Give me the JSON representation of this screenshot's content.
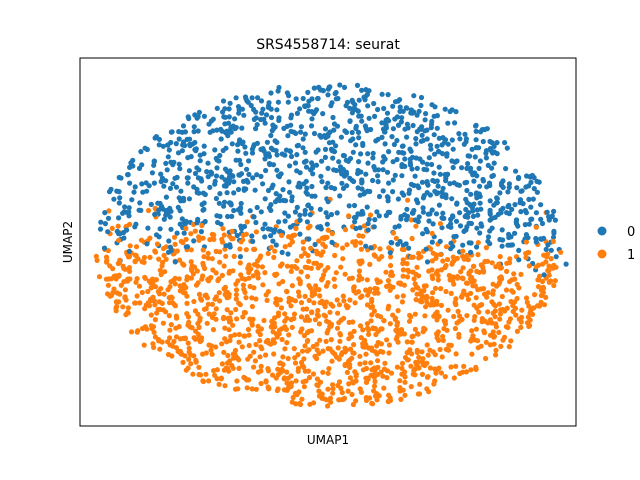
{
  "chart_data": {
    "type": "scatter",
    "title": "SRS4558714: seurat",
    "xlabel": "UMAP1",
    "ylabel": "UMAP2",
    "xticks": [],
    "yticks": [],
    "grid": false,
    "legend": {
      "placement": "right",
      "entries": [
        {
          "label": "0",
          "color": "#1f77b4"
        },
        {
          "label": "1",
          "color": "#ff7f0e"
        }
      ]
    },
    "xlim": [
      0,
      100
    ],
    "ylim": [
      0,
      100
    ],
    "series": [
      {
        "label": "0",
        "color": "#1f77b4",
        "approx_count": 1150,
        "x": [
          5,
          8,
          10,
          12,
          15,
          18,
          20,
          23,
          26,
          29,
          32,
          35,
          38,
          40,
          42,
          45,
          48,
          50,
          52,
          55,
          58,
          60,
          62,
          64,
          66,
          68,
          70,
          72,
          74,
          76,
          78,
          80,
          82,
          84,
          86,
          88,
          90,
          92,
          94,
          96,
          98,
          20,
          30,
          40,
          50,
          60,
          70,
          80,
          90,
          25,
          35,
          45,
          55,
          65,
          75,
          85,
          95,
          15,
          28,
          38,
          48,
          58,
          68,
          78,
          88
        ],
        "y": [
          58,
          62,
          66,
          70,
          72,
          75,
          78,
          80,
          82,
          84,
          85,
          86,
          87,
          88,
          88,
          89,
          89,
          90,
          89,
          88,
          87,
          86,
          85,
          84,
          82,
          80,
          78,
          76,
          74,
          72,
          70,
          68,
          65,
          62,
          58,
          55,
          52,
          50,
          48,
          46,
          44,
          62,
          66,
          68,
          70,
          68,
          66,
          62,
          58,
          74,
          76,
          78,
          78,
          76,
          72,
          66,
          50,
          66,
          72,
          74,
          75,
          74,
          70,
          64,
          56
        ]
      },
      {
        "label": "1",
        "color": "#ff7f0e",
        "approx_count": 1450,
        "x": [
          5,
          8,
          10,
          12,
          15,
          18,
          20,
          23,
          26,
          29,
          32,
          35,
          38,
          40,
          42,
          45,
          48,
          50,
          52,
          55,
          58,
          60,
          62,
          64,
          66,
          68,
          70,
          72,
          74,
          76,
          78,
          80,
          82,
          84,
          86,
          88,
          90,
          92,
          94,
          20,
          30,
          40,
          50,
          60,
          70,
          80,
          25,
          35,
          45,
          55,
          65,
          75,
          85
        ],
        "y": [
          48,
          45,
          42,
          38,
          34,
          30,
          27,
          24,
          22,
          20,
          18,
          16,
          15,
          14,
          13,
          12,
          11,
          10,
          11,
          12,
          13,
          14,
          15,
          16,
          18,
          20,
          22,
          24,
          26,
          28,
          30,
          32,
          35,
          38,
          42,
          46,
          50,
          54,
          58,
          40,
          35,
          30,
          26,
          30,
          35,
          42,
          46,
          48,
          50,
          50,
          48,
          44,
          40
        ]
      }
    ]
  }
}
